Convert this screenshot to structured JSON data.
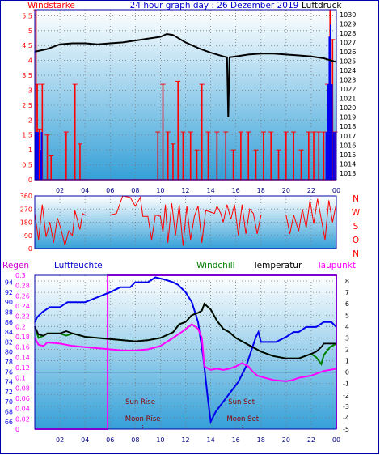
{
  "colors": {
    "border": "#0000aa",
    "dot": "#7a7a7a",
    "red": "#ff0000",
    "blue": "#0000ee",
    "black": "#000000",
    "magenta": "#ff00ff",
    "green": "#008000",
    "navy": "#000080",
    "brown": "#8b0000",
    "grad_top": "#ffffff",
    "grad_bottom": "#35a0d8"
  },
  "chart_data": [
    {
      "id": "wind_pressure",
      "type": "line",
      "title": "24 hour graph day : 26 Dezember 2019",
      "left_label": "Windstärke",
      "right_label": "Luftdruck",
      "x": [
        "02",
        "04",
        "06",
        "08",
        "10",
        "12",
        "14",
        "16",
        "18",
        "20",
        "22",
        "00"
      ],
      "y_left_ticks": [
        "5.5",
        "5",
        "4.5",
        "4",
        "3.5",
        "3",
        "2.5",
        "2",
        "1.5",
        "1",
        "0.5",
        "0"
      ],
      "y_left_range": [
        0,
        5.7
      ],
      "y_right_ticks": [
        "1030",
        "1029",
        "1028",
        "1027",
        "1026",
        "1025",
        "1024",
        "1023",
        "1022",
        "1021",
        "1020",
        "1019",
        "1018",
        "1017",
        "1016",
        "1015",
        "1014",
        "1013"
      ],
      "y_right_range": [
        1012.3,
        1030.5
      ],
      "pressure_hpa": [
        [
          0.0,
          1026.0
        ],
        [
          1.0,
          1026.3
        ],
        [
          2.0,
          1026.8
        ],
        [
          3.0,
          1026.9
        ],
        [
          4.0,
          1026.9
        ],
        [
          5.0,
          1026.8
        ],
        [
          6.0,
          1026.9
        ],
        [
          7.0,
          1027.0
        ],
        [
          8.0,
          1027.2
        ],
        [
          9.0,
          1027.4
        ],
        [
          10.0,
          1027.6
        ],
        [
          10.5,
          1027.9
        ],
        [
          11.0,
          1027.8
        ],
        [
          11.5,
          1027.4
        ],
        [
          12.0,
          1027.0
        ],
        [
          13.0,
          1026.4
        ],
        [
          14.0,
          1025.9
        ],
        [
          15.0,
          1025.5
        ],
        [
          15.3,
          1025.4
        ],
        [
          15.4,
          1019.0
        ],
        [
          15.5,
          1025.4
        ],
        [
          16.0,
          1025.5
        ],
        [
          17.0,
          1025.7
        ],
        [
          18.0,
          1025.8
        ],
        [
          19.0,
          1025.8
        ],
        [
          20.0,
          1025.7
        ],
        [
          21.0,
          1025.6
        ],
        [
          22.0,
          1025.5
        ],
        [
          23.0,
          1025.3
        ],
        [
          24.0,
          1024.9
        ]
      ],
      "gust_spikes_ms": [
        [
          0.1,
          5.7
        ],
        [
          0.2,
          3.2
        ],
        [
          0.35,
          1.7
        ],
        [
          0.6,
          3.2
        ],
        [
          1.0,
          1.5
        ],
        [
          1.3,
          0.8
        ],
        [
          2.5,
          1.6
        ],
        [
          3.2,
          3.2
        ],
        [
          3.6,
          1.2
        ],
        [
          9.8,
          1.6
        ],
        [
          10.2,
          3.2
        ],
        [
          10.6,
          1.6
        ],
        [
          11.0,
          1.2
        ],
        [
          11.4,
          3.3
        ],
        [
          11.8,
          1.6
        ],
        [
          12.4,
          1.6
        ],
        [
          12.9,
          1.0
        ],
        [
          13.3,
          3.2
        ],
        [
          13.8,
          1.6
        ],
        [
          14.5,
          1.6
        ],
        [
          15.2,
          1.6
        ],
        [
          15.8,
          1.0
        ],
        [
          16.4,
          1.6
        ],
        [
          17.0,
          1.6
        ],
        [
          17.6,
          1.0
        ],
        [
          18.2,
          1.6
        ],
        [
          18.8,
          1.6
        ],
        [
          19.4,
          1.0
        ],
        [
          20.0,
          1.6
        ],
        [
          20.6,
          1.6
        ],
        [
          21.2,
          1.0
        ],
        [
          21.8,
          1.6
        ],
        [
          22.2,
          1.6
        ],
        [
          22.6,
          1.6
        ],
        [
          23.0,
          1.6
        ],
        [
          23.3,
          3.2
        ],
        [
          23.5,
          5.7
        ],
        [
          23.7,
          4.7
        ],
        [
          23.9,
          1.6
        ]
      ],
      "avg_wind_bars_ms": [
        [
          0.05,
          1.6
        ],
        [
          0.15,
          1.6
        ],
        [
          0.25,
          1.6
        ],
        [
          0.45,
          1.0
        ],
        [
          0.55,
          1.6
        ],
        [
          23.2,
          1.6
        ],
        [
          23.35,
          3.2
        ],
        [
          23.45,
          4.8
        ],
        [
          23.55,
          5.2
        ],
        [
          23.65,
          3.2
        ],
        [
          23.8,
          1.6
        ],
        [
          23.95,
          1.6
        ]
      ]
    },
    {
      "id": "wind_direction",
      "type": "line",
      "y_ticks": [
        "360",
        "270",
        "180",
        "90",
        "0"
      ],
      "y_range": [
        0,
        360
      ],
      "right_labels": [
        "N",
        "W",
        "S",
        "O",
        "N"
      ],
      "direction_deg": [
        [
          0.0,
          240
        ],
        [
          0.3,
          60
        ],
        [
          0.6,
          300
        ],
        [
          0.9,
          80
        ],
        [
          1.2,
          180
        ],
        [
          1.5,
          40
        ],
        [
          1.8,
          210
        ],
        [
          2.1,
          130
        ],
        [
          2.4,
          20
        ],
        [
          2.7,
          120
        ],
        [
          3.0,
          90
        ],
        [
          3.2,
          260
        ],
        [
          3.6,
          130
        ],
        [
          3.8,
          240
        ],
        [
          4.0,
          230
        ],
        [
          5.0,
          230
        ],
        [
          6.0,
          230
        ],
        [
          6.5,
          240
        ],
        [
          7.0,
          360
        ],
        [
          7.6,
          350
        ],
        [
          8.0,
          290
        ],
        [
          8.4,
          350
        ],
        [
          8.6,
          220
        ],
        [
          9.0,
          220
        ],
        [
          9.3,
          60
        ],
        [
          9.6,
          230
        ],
        [
          10.0,
          220
        ],
        [
          10.2,
          110
        ],
        [
          10.4,
          300
        ],
        [
          10.6,
          40
        ],
        [
          10.9,
          310
        ],
        [
          11.2,
          90
        ],
        [
          11.5,
          300
        ],
        [
          11.8,
          20
        ],
        [
          12.1,
          290
        ],
        [
          12.4,
          60
        ],
        [
          12.7,
          220
        ],
        [
          13.0,
          290
        ],
        [
          13.3,
          40
        ],
        [
          13.6,
          260
        ],
        [
          14.0,
          250
        ],
        [
          14.3,
          240
        ],
        [
          14.5,
          290
        ],
        [
          14.8,
          240
        ],
        [
          15.0,
          180
        ],
        [
          15.3,
          300
        ],
        [
          15.6,
          200
        ],
        [
          15.9,
          300
        ],
        [
          16.2,
          90
        ],
        [
          16.5,
          300
        ],
        [
          16.8,
          100
        ],
        [
          17.1,
          270
        ],
        [
          17.4,
          240
        ],
        [
          17.7,
          100
        ],
        [
          18.0,
          230
        ],
        [
          18.5,
          230
        ],
        [
          19.0,
          230
        ],
        [
          19.5,
          230
        ],
        [
          20.0,
          230
        ],
        [
          20.3,
          100
        ],
        [
          20.6,
          230
        ],
        [
          21.0,
          120
        ],
        [
          21.3,
          270
        ],
        [
          21.6,
          140
        ],
        [
          21.9,
          330
        ],
        [
          22.2,
          170
        ],
        [
          22.5,
          340
        ],
        [
          22.8,
          200
        ],
        [
          23.1,
          60
        ],
        [
          23.4,
          330
        ],
        [
          23.7,
          180
        ],
        [
          24.0,
          310
        ]
      ]
    },
    {
      "id": "temp_humidity",
      "type": "line",
      "labels": {
        "rain": "Regen",
        "humidity": "Luftfeuchte",
        "windchill": "Windchill",
        "temperature": "Temperatur",
        "dewpoint": "Taupunkt"
      },
      "humidity_ticks": [
        "94",
        "92",
        "90",
        "88",
        "86",
        "84",
        "82",
        "80",
        "78",
        "76",
        "74",
        "72",
        "70",
        "68",
        "66"
      ],
      "humidity_range": [
        64.5,
        95.4
      ],
      "rain_ticks": [
        "0.3",
        "0.28",
        "0.26",
        "0.24",
        "0.22",
        "0.2",
        "0.18",
        "0.16",
        "0.14",
        "0.12",
        "0.1",
        "0.08",
        "0.06",
        "0.04",
        "0.02",
        "0"
      ],
      "rain_range": [
        0,
        0.3
      ],
      "temp_ticks": [
        "8",
        "7",
        "6",
        "5",
        "4",
        "3",
        "2",
        "1",
        "0",
        "-1",
        "-2",
        "-3",
        "-4",
        "-5"
      ],
      "temp_range": [
        -5,
        8.5
      ],
      "humidity_pct": [
        [
          0.0,
          86.0
        ],
        [
          0.2,
          87.0
        ],
        [
          0.6,
          88.0
        ],
        [
          1.2,
          89.0
        ],
        [
          2.0,
          89.0
        ],
        [
          2.6,
          90.0
        ],
        [
          4.0,
          90.0
        ],
        [
          5.0,
          91.0
        ],
        [
          6.0,
          92.0
        ],
        [
          6.8,
          93.0
        ],
        [
          7.6,
          93.0
        ],
        [
          8.0,
          94.0
        ],
        [
          9.0,
          94.0
        ],
        [
          9.6,
          95.0
        ],
        [
          10.4,
          94.5
        ],
        [
          11.0,
          94.0
        ],
        [
          11.4,
          93.5
        ],
        [
          12.0,
          92.0
        ],
        [
          12.5,
          90.0
        ],
        [
          13.0,
          86.0
        ],
        [
          13.4,
          79.0
        ],
        [
          13.8,
          70.0
        ],
        [
          14.0,
          66.0
        ],
        [
          14.4,
          68.0
        ],
        [
          15.0,
          70.0
        ],
        [
          15.6,
          72.0
        ],
        [
          16.2,
          74.0
        ],
        [
          16.8,
          77.0
        ],
        [
          17.2,
          80.0
        ],
        [
          17.6,
          83.0
        ],
        [
          17.8,
          84.0
        ],
        [
          18.0,
          82.0
        ],
        [
          18.6,
          82.0
        ],
        [
          19.2,
          82.0
        ],
        [
          20.0,
          83.0
        ],
        [
          20.6,
          84.0
        ],
        [
          21.0,
          84.0
        ],
        [
          21.6,
          85.0
        ],
        [
          22.4,
          85.0
        ],
        [
          23.0,
          86.0
        ],
        [
          23.6,
          86.0
        ],
        [
          24.0,
          85.0
        ]
      ],
      "temperature_c": [
        [
          0.0,
          4.0
        ],
        [
          0.3,
          3.3
        ],
        [
          0.7,
          3.2
        ],
        [
          1.0,
          3.4
        ],
        [
          2.0,
          3.4
        ],
        [
          2.5,
          3.6
        ],
        [
          3.0,
          3.4
        ],
        [
          4.0,
          3.1
        ],
        [
          5.0,
          3.0
        ],
        [
          6.0,
          2.9
        ],
        [
          7.0,
          2.8
        ],
        [
          8.0,
          2.7
        ],
        [
          9.0,
          2.8
        ],
        [
          10.0,
          3.0
        ],
        [
          11.0,
          3.5
        ],
        [
          11.5,
          4.2
        ],
        [
          12.0,
          4.4
        ],
        [
          12.5,
          5.0
        ],
        [
          13.0,
          5.2
        ],
        [
          13.3,
          5.4
        ],
        [
          13.5,
          6.0
        ],
        [
          14.0,
          5.5
        ],
        [
          14.5,
          4.5
        ],
        [
          15.0,
          3.8
        ],
        [
          15.5,
          3.5
        ],
        [
          16.0,
          3.0
        ],
        [
          17.0,
          2.4
        ],
        [
          17.5,
          2.1
        ],
        [
          18.0,
          1.8
        ],
        [
          19.0,
          1.4
        ],
        [
          20.0,
          1.2
        ],
        [
          21.0,
          1.2
        ],
        [
          21.5,
          1.4
        ],
        [
          22.0,
          1.6
        ],
        [
          22.4,
          1.8
        ],
        [
          22.8,
          2.2
        ],
        [
          23.0,
          2.5
        ],
        [
          23.5,
          2.5
        ],
        [
          24.0,
          2.5
        ]
      ],
      "windchill_c": [
        [
          0.0,
          4.0
        ],
        [
          0.3,
          3.0
        ],
        [
          0.7,
          3.2
        ],
        [
          1.0,
          3.4
        ],
        [
          2.0,
          3.4
        ],
        [
          2.5,
          3.2
        ],
        [
          3.0,
          3.4
        ],
        [
          4.0,
          3.1
        ],
        [
          5.0,
          3.0
        ],
        [
          6.0,
          2.9
        ],
        [
          7.0,
          2.8
        ],
        [
          8.0,
          2.7
        ],
        [
          9.0,
          2.8
        ],
        [
          10.0,
          3.0
        ],
        [
          11.0,
          3.5
        ],
        [
          11.5,
          4.2
        ],
        [
          12.0,
          4.4
        ],
        [
          12.5,
          5.0
        ],
        [
          13.0,
          5.2
        ],
        [
          13.3,
          5.4
        ],
        [
          13.5,
          6.0
        ],
        [
          14.0,
          5.5
        ],
        [
          14.5,
          4.5
        ],
        [
          15.0,
          3.8
        ],
        [
          15.5,
          3.5
        ],
        [
          16.0,
          3.0
        ],
        [
          17.0,
          2.4
        ],
        [
          17.5,
          2.1
        ],
        [
          18.0,
          1.8
        ],
        [
          19.0,
          1.4
        ],
        [
          20.0,
          1.2
        ],
        [
          21.0,
          1.2
        ],
        [
          21.5,
          1.4
        ],
        [
          22.0,
          1.6
        ],
        [
          22.4,
          1.3
        ],
        [
          22.8,
          0.7
        ],
        [
          23.0,
          1.5
        ],
        [
          23.5,
          2.2
        ],
        [
          24.0,
          2.5
        ]
      ],
      "dewpoint_c": [
        [
          0.0,
          3.0
        ],
        [
          0.3,
          2.4
        ],
        [
          0.7,
          2.3
        ],
        [
          1.0,
          2.6
        ],
        [
          2.0,
          2.5
        ],
        [
          3.0,
          2.3
        ],
        [
          4.0,
          2.2
        ],
        [
          5.0,
          2.1
        ],
        [
          6.0,
          2.0
        ],
        [
          7.0,
          1.9
        ],
        [
          8.0,
          1.9
        ],
        [
          9.0,
          2.0
        ],
        [
          10.0,
          2.3
        ],
        [
          11.0,
          3.0
        ],
        [
          11.8,
          3.6
        ],
        [
          12.5,
          4.2
        ],
        [
          13.0,
          3.8
        ],
        [
          13.3,
          3.0
        ],
        [
          13.5,
          0.5
        ],
        [
          14.0,
          0.2
        ],
        [
          14.5,
          0.3
        ],
        [
          15.0,
          0.2
        ],
        [
          15.5,
          0.3
        ],
        [
          16.0,
          0.5
        ],
        [
          16.5,
          0.8
        ],
        [
          17.0,
          0.5
        ],
        [
          17.3,
          0.1
        ],
        [
          17.7,
          -0.3
        ],
        [
          18.0,
          -0.4
        ],
        [
          19.0,
          -0.7
        ],
        [
          20.0,
          -0.8
        ],
        [
          20.5,
          -0.7
        ],
        [
          21.0,
          -0.5
        ],
        [
          22.0,
          -0.3
        ],
        [
          22.5,
          -0.1
        ],
        [
          23.0,
          0.1
        ],
        [
          23.5,
          0.2
        ],
        [
          24.0,
          0.3
        ]
      ],
      "rain_mm": [
        [
          0.0,
          0.0
        ],
        [
          5.8,
          0.0
        ],
        [
          5.8,
          0.3
        ],
        [
          24.0,
          0.3
        ],
        [
          24.0,
          0.0
        ]
      ],
      "zero_line_c": 0,
      "sun_rise": {
        "label": "Sun Rise",
        "hour": 8.4
      },
      "sun_set": {
        "label": "Sun Set",
        "hour": 16.45
      },
      "moon_rise": {
        "label": "Moon Rise",
        "hour": 8.6
      },
      "moon_set": {
        "label": "Moon Set",
        "hour": 16.55
      }
    }
  ]
}
